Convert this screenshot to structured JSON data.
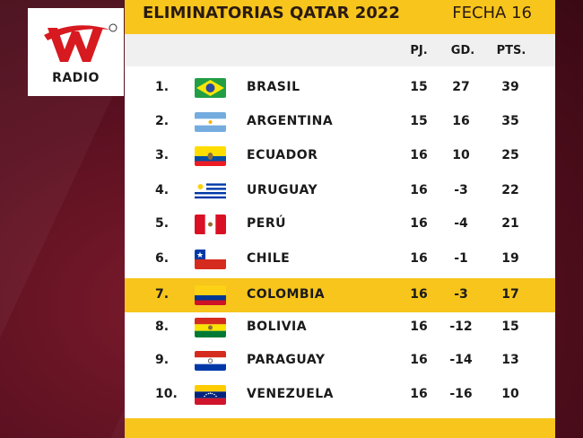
{
  "brand": {
    "logo_label": "RADIO",
    "logo_letter": "W"
  },
  "header": {
    "title": "ELIMINATORIAS QATAR 2022",
    "round": "FECHA 16"
  },
  "columns": {
    "pj": "PJ.",
    "gd": "GD.",
    "pts": "PTS."
  },
  "colors": {
    "accent": "#f7c51c",
    "background": "#5a1020"
  },
  "rows": [
    {
      "pos": "1.",
      "team": "BRASIL",
      "flag": "brazil-flag-icon",
      "pj": "15",
      "gd": "27",
      "pts": "39"
    },
    {
      "pos": "2.",
      "team": "ARGENTINA",
      "flag": "argentina-flag-icon",
      "pj": "15",
      "gd": "16",
      "pts": "35"
    },
    {
      "pos": "3.",
      "team": "ECUADOR",
      "flag": "ecuador-flag-icon",
      "pj": "16",
      "gd": "10",
      "pts": "25"
    },
    {
      "pos": "4.",
      "team": "URUGUAY",
      "flag": "uruguay-flag-icon",
      "pj": "16",
      "gd": "-3",
      "pts": "22"
    },
    {
      "pos": "5.",
      "team": "PERÚ",
      "flag": "peru-flag-icon",
      "pj": "16",
      "gd": "-4",
      "pts": "21"
    },
    {
      "pos": "6.",
      "team": "CHILE",
      "flag": "chile-flag-icon",
      "pj": "16",
      "gd": "-1",
      "pts": "19"
    },
    {
      "pos": "7.",
      "team": "COLOMBIA",
      "flag": "colombia-flag-icon",
      "pj": "16",
      "gd": "-3",
      "pts": "17",
      "highlight": true
    },
    {
      "pos": "8.",
      "team": "BOLIVIA",
      "flag": "bolivia-flag-icon",
      "pj": "16",
      "gd": "-12",
      "pts": "15"
    },
    {
      "pos": "9.",
      "team": "PARAGUAY",
      "flag": "paraguay-flag-icon",
      "pj": "16",
      "gd": "-14",
      "pts": "13"
    },
    {
      "pos": "10.",
      "team": "VENEZUELA",
      "flag": "venezuela-flag-icon",
      "pj": "16",
      "gd": "-16",
      "pts": "10"
    }
  ]
}
